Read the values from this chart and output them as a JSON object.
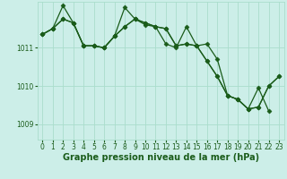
{
  "bg_color": "#cceee8",
  "grid_color": "#aaddcc",
  "line_color": "#1a5c1a",
  "marker": "D",
  "markersize": 2.5,
  "linewidth": 0.9,
  "xlabel": "Graphe pression niveau de la mer (hPa)",
  "xlabel_fontsize": 7,
  "tick_fontsize": 5.5,
  "ylim": [
    1008.6,
    1012.2
  ],
  "xlim": [
    -0.5,
    23.5
  ],
  "yticks": [
    1009,
    1010,
    1011
  ],
  "xticks": [
    0,
    1,
    2,
    3,
    4,
    5,
    6,
    7,
    8,
    9,
    10,
    11,
    12,
    13,
    14,
    15,
    16,
    17,
    18,
    19,
    20,
    21,
    22,
    23
  ],
  "series1": [
    1011.35,
    1011.5,
    1011.75,
    1011.65,
    1011.05,
    1011.05,
    1011.0,
    1011.3,
    1011.55,
    1011.75,
    1011.6,
    1011.55,
    1011.1,
    1011.0,
    1011.55,
    1011.05,
    1011.1,
    1010.7,
    1009.75,
    1009.65,
    1009.4,
    1009.45,
    1010.0,
    1010.25
  ],
  "series2": [
    1011.35,
    1011.5,
    1012.1,
    1011.65,
    1011.05,
    1011.05,
    1011.0,
    1011.3,
    1012.05,
    1011.75,
    1011.65,
    1011.55,
    1011.5,
    1011.05,
    1011.1,
    1011.05,
    1010.65,
    1010.25,
    1009.75,
    1009.65,
    1009.4,
    1009.95,
    1009.35
  ],
  "series3": [
    1011.35,
    1011.5,
    1011.75,
    1011.65,
    1011.05,
    1011.05,
    1011.0,
    1011.3,
    1011.55,
    1011.75,
    1011.65,
    1011.55,
    1011.5,
    1011.05,
    1011.1,
    1011.05,
    1010.65,
    1010.25,
    1009.75,
    1009.65,
    1009.4,
    1009.45,
    1010.0,
    1010.25
  ]
}
